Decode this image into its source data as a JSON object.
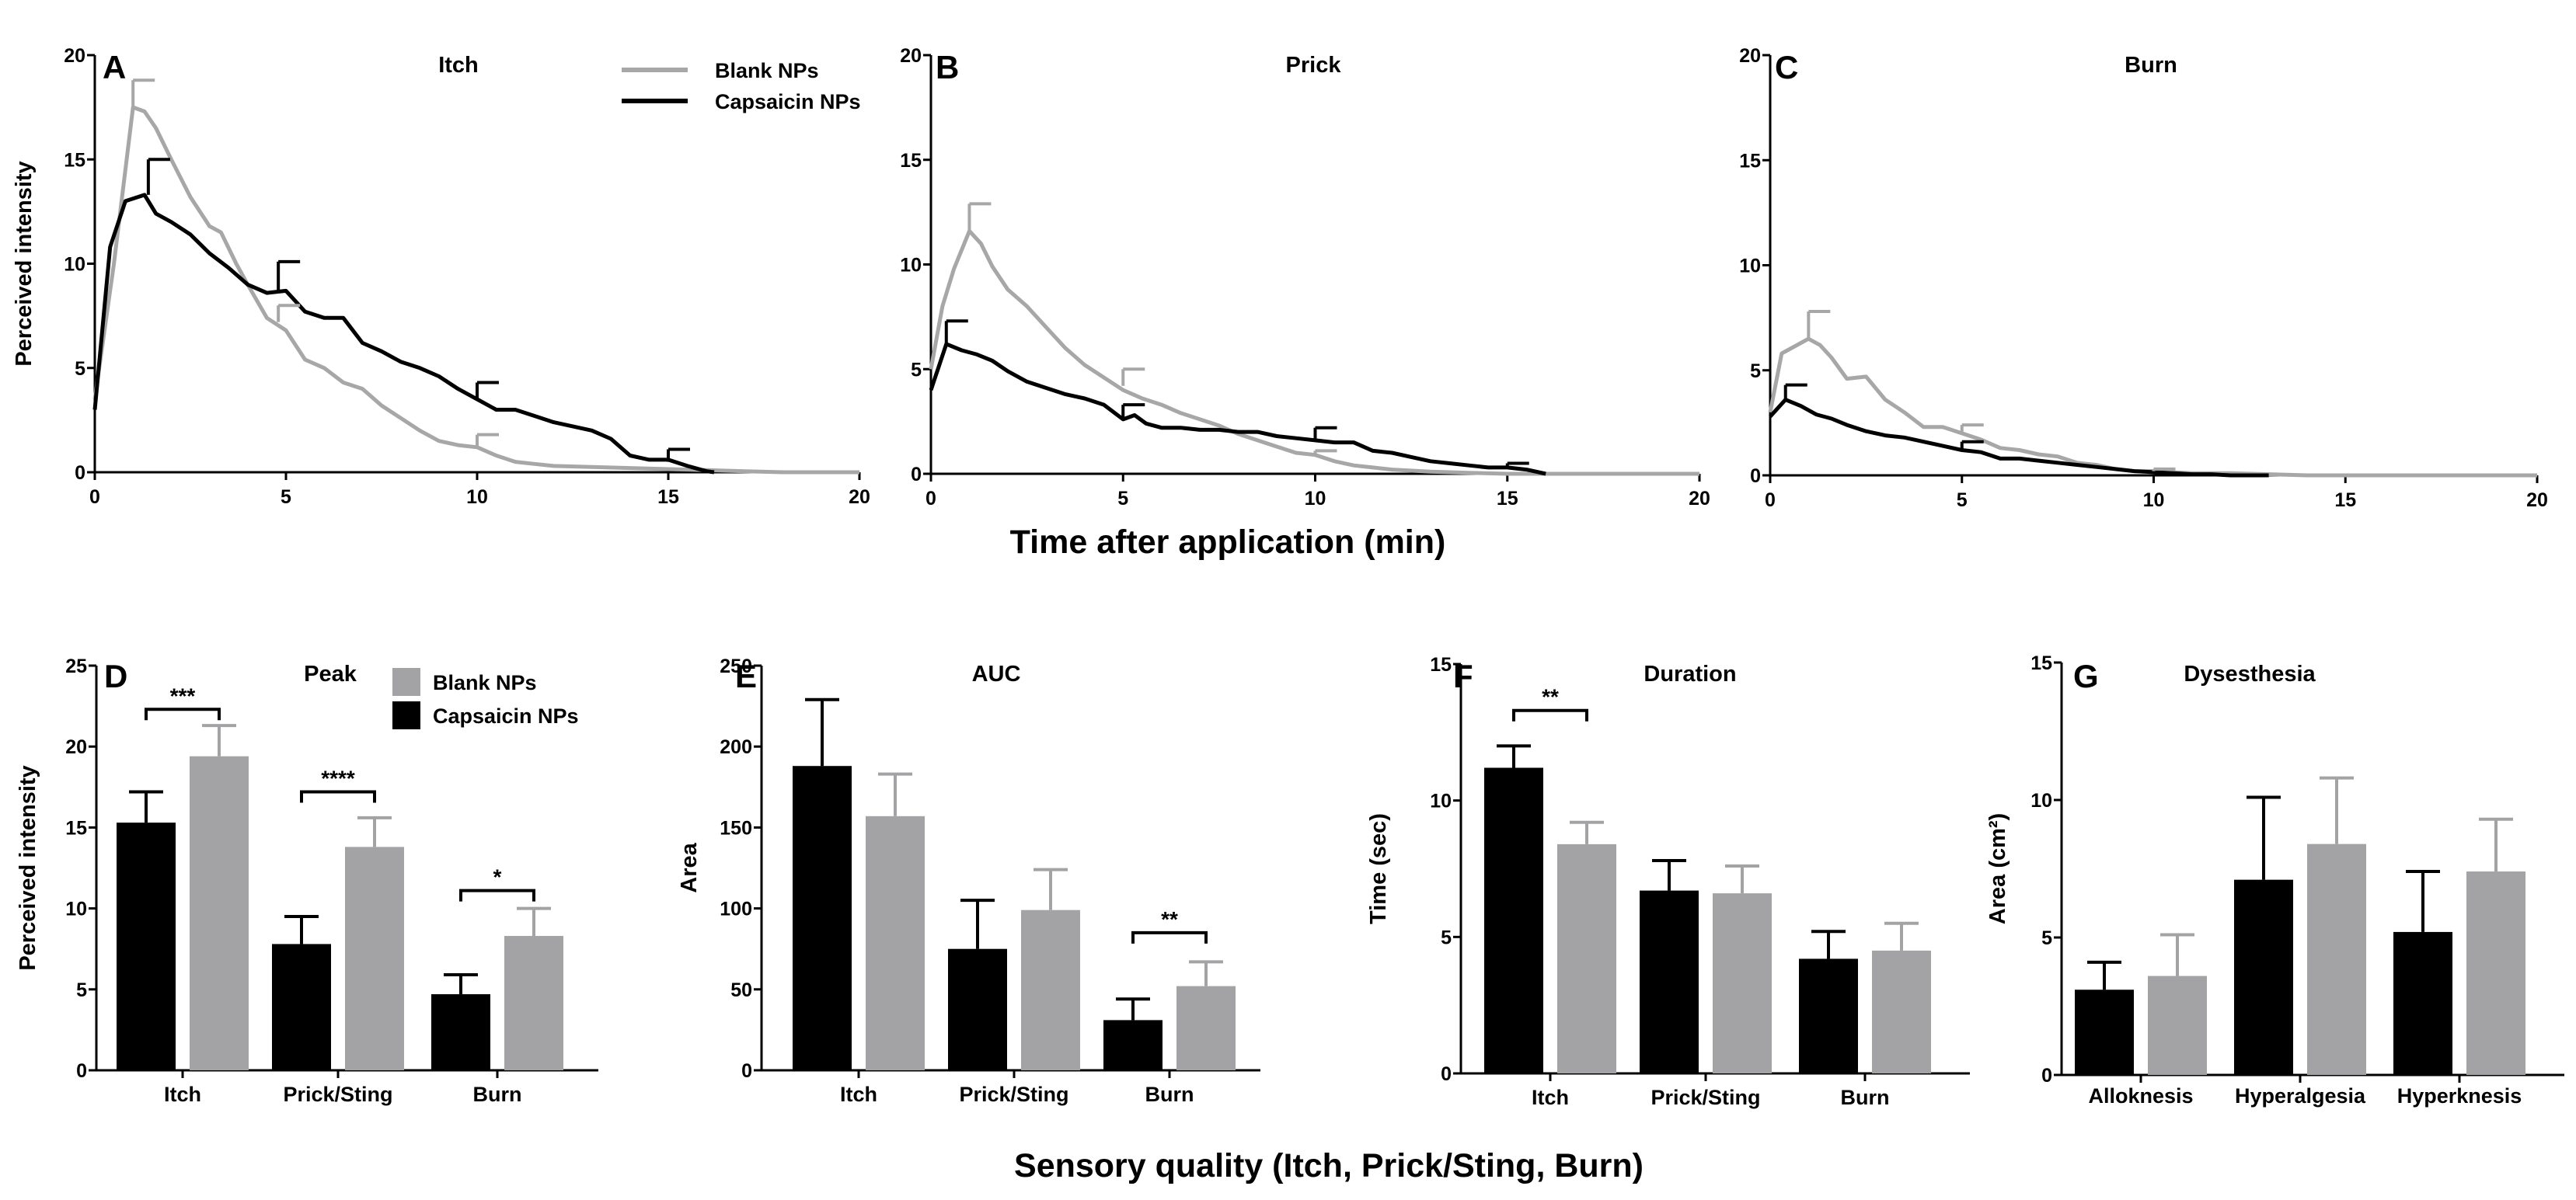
{
  "colors": {
    "capsaicin": "#000000",
    "blank": "#a3a3a6",
    "blank_line": "#a7a7a7"
  },
  "figure_labels": {
    "top_xlabel": "Time after application (min)",
    "bottom_xlabel": "Sensory quality (Itch, Prick/Sting, Burn)"
  },
  "chart_data": [
    {
      "id": "A",
      "letter": "A",
      "type": "line",
      "title": "Itch",
      "xlabel": "",
      "ylabel": "Perceived intensity",
      "xlim": [
        0,
        20
      ],
      "ylim": [
        0,
        20
      ],
      "xticks": [
        "0",
        "5",
        "10",
        "15",
        "20"
      ],
      "yticks": [
        "0",
        "5",
        "10",
        "15",
        "20"
      ],
      "legend": [
        "Blank NPs",
        "Capsaicin NPs"
      ],
      "series": [
        {
          "name": "Blank NPs",
          "color": "#a7a7a7",
          "x": [
            0,
            0.5,
            1,
            1.3,
            1.6,
            2,
            2.5,
            3,
            3.3,
            3.7,
            4,
            4.5,
            5,
            5.5,
            6,
            6.5,
            7,
            7.5,
            8,
            8.5,
            9,
            9.5,
            10,
            10.5,
            11,
            11.5,
            12,
            13,
            14,
            15,
            16,
            17,
            18,
            19,
            20
          ],
          "y": [
            3.5,
            10,
            17.5,
            17.3,
            16.5,
            15,
            13.2,
            11.8,
            11.5,
            10,
            9,
            7.4,
            6.8,
            5.4,
            5,
            4.3,
            4,
            3.2,
            2.6,
            2,
            1.5,
            1.3,
            1.2,
            0.8,
            0.5,
            0.4,
            0.3,
            0.25,
            0.2,
            0.15,
            0.1,
            0.05,
            0,
            0,
            0
          ]
        },
        {
          "name": "Capsaicin NPs",
          "color": "#000000",
          "x": [
            0,
            0.4,
            0.8,
            1.3,
            1.6,
            2,
            2.5,
            3,
            3.5,
            4,
            4.5,
            5,
            5.5,
            6,
            6.5,
            7,
            7.5,
            8,
            8.5,
            9,
            9.5,
            10,
            10.5,
            11,
            11.5,
            12,
            12.5,
            13,
            13.5,
            14,
            14.5,
            15,
            15.5,
            16,
            16.2
          ],
          "y": [
            3,
            10.8,
            13,
            13.3,
            12.4,
            12,
            11.4,
            10.5,
            9.8,
            9,
            8.6,
            8.7,
            7.7,
            7.4,
            7.4,
            6.2,
            5.8,
            5.3,
            5,
            4.6,
            4,
            3.5,
            3,
            3,
            2.7,
            2.4,
            2.2,
            2,
            1.6,
            0.8,
            0.6,
            0.6,
            0.3,
            0.05,
            0
          ]
        }
      ],
      "error_bars": [
        {
          "x": 1.0,
          "y": 17.5,
          "top": 18.8,
          "color": "#a7a7a7"
        },
        {
          "x": 4.8,
          "y": 7.2,
          "top": 8.0,
          "color": "#a7a7a7"
        },
        {
          "x": 10.0,
          "y": 1.2,
          "top": 1.8,
          "color": "#a7a7a7"
        },
        {
          "x": 1.4,
          "y": 13.3,
          "top": 15.0,
          "color": "#000000"
        },
        {
          "x": 4.8,
          "y": 8.6,
          "top": 10.1,
          "color": "#000000"
        },
        {
          "x": 10.0,
          "y": 3.5,
          "top": 4.3,
          "color": "#000000"
        },
        {
          "x": 15.0,
          "y": 0.5,
          "top": 1.1,
          "color": "#000000"
        }
      ]
    },
    {
      "id": "B",
      "letter": "B",
      "type": "line",
      "title": "Prick",
      "xlabel": "",
      "ylabel": "",
      "xlim": [
        0,
        20
      ],
      "ylim": [
        0,
        20
      ],
      "xticks": [
        "0",
        "5",
        "10",
        "15",
        "20"
      ],
      "yticks": [
        "0",
        "5",
        "10",
        "15",
        "20"
      ],
      "series": [
        {
          "name": "Blank NPs",
          "color": "#a7a7a7",
          "x": [
            0,
            0.3,
            0.6,
            1,
            1.3,
            1.6,
            2,
            2.5,
            3,
            3.5,
            4,
            4.5,
            5,
            5.5,
            6,
            6.5,
            7,
            7.5,
            8,
            8.5,
            9,
            9.5,
            10,
            10.5,
            11,
            11.5,
            12,
            13,
            14,
            15,
            16,
            17,
            18,
            19,
            20
          ],
          "y": [
            5,
            8,
            9.8,
            11.6,
            11,
            9.9,
            8.8,
            8,
            7,
            6,
            5.2,
            4.6,
            4,
            3.6,
            3.3,
            2.9,
            2.6,
            2.3,
            1.9,
            1.6,
            1.3,
            1,
            0.9,
            0.6,
            0.4,
            0.3,
            0.2,
            0.1,
            0.05,
            0,
            0,
            0,
            0,
            0,
            0
          ]
        },
        {
          "name": "Capsaicin NPs",
          "color": "#000000",
          "x": [
            0,
            0.4,
            0.8,
            1.2,
            1.6,
            2,
            2.5,
            3,
            3.5,
            4,
            4.5,
            5,
            5.3,
            5.6,
            6,
            6.5,
            7,
            7.5,
            8,
            8.5,
            9,
            9.5,
            10,
            10.5,
            11,
            11.5,
            12,
            12.5,
            13,
            13.5,
            14,
            14.5,
            15,
            15.5,
            16
          ],
          "y": [
            4,
            6.2,
            5.9,
            5.7,
            5.4,
            4.9,
            4.4,
            4.1,
            3.8,
            3.6,
            3.3,
            2.6,
            2.8,
            2.4,
            2.2,
            2.2,
            2.1,
            2.1,
            2,
            2,
            1.8,
            1.7,
            1.6,
            1.5,
            1.5,
            1.1,
            1,
            0.8,
            0.6,
            0.5,
            0.4,
            0.3,
            0.3,
            0.2,
            0
          ]
        }
      ],
      "error_bars": [
        {
          "x": 1.0,
          "y": 11.6,
          "top": 12.9,
          "color": "#a7a7a7"
        },
        {
          "x": 5.0,
          "y": 4.2,
          "top": 5.0,
          "color": "#a7a7a7"
        },
        {
          "x": 10.0,
          "y": 0.9,
          "top": 1.1,
          "color": "#a7a7a7"
        },
        {
          "x": 0.4,
          "y": 6.1,
          "top": 7.3,
          "color": "#000000"
        },
        {
          "x": 5.0,
          "y": 2.6,
          "top": 3.3,
          "color": "#000000"
        },
        {
          "x": 10.0,
          "y": 1.6,
          "top": 2.2,
          "color": "#000000"
        },
        {
          "x": 15.0,
          "y": 0.3,
          "top": 0.5,
          "color": "#000000"
        }
      ]
    },
    {
      "id": "C",
      "letter": "C",
      "type": "line",
      "title": "Burn",
      "xlabel": "",
      "ylabel": "",
      "xlim": [
        0,
        20
      ],
      "ylim": [
        0,
        20
      ],
      "xticks": [
        "0",
        "5",
        "10",
        "15",
        "20"
      ],
      "yticks": [
        "0",
        "5",
        "10",
        "15",
        "20"
      ],
      "series": [
        {
          "name": "Blank NPs",
          "color": "#a7a7a7",
          "x": [
            0,
            0.3,
            0.6,
            1,
            1.3,
            1.6,
            2,
            2.5,
            3,
            3.5,
            4,
            4.5,
            5,
            5.5,
            6,
            6.5,
            7,
            7.5,
            8,
            8.5,
            9,
            9.5,
            10,
            11,
            12,
            13,
            14,
            15,
            16,
            17,
            18,
            19,
            20
          ],
          "y": [
            3,
            5.8,
            6.1,
            6.5,
            6.2,
            5.6,
            4.6,
            4.7,
            3.6,
            3,
            2.3,
            2.3,
            2,
            1.7,
            1.3,
            1.2,
            1,
            0.9,
            0.6,
            0.5,
            0.3,
            0.2,
            0.2,
            0.1,
            0.1,
            0.05,
            0,
            0,
            0,
            0,
            0,
            0,
            0
          ]
        },
        {
          "name": "Capsaicin NPs",
          "color": "#000000",
          "x": [
            0,
            0.4,
            0.8,
            1.2,
            1.6,
            2,
            2.5,
            3,
            3.5,
            4,
            4.5,
            5,
            5.5,
            6,
            6.5,
            7,
            7.5,
            8,
            8.5,
            9,
            9.5,
            10,
            10.5,
            11,
            11.5,
            12,
            13
          ],
          "y": [
            2.8,
            3.6,
            3.3,
            2.9,
            2.7,
            2.4,
            2.1,
            1.9,
            1.8,
            1.6,
            1.4,
            1.2,
            1.1,
            0.8,
            0.8,
            0.7,
            0.6,
            0.5,
            0.4,
            0.3,
            0.2,
            0.15,
            0.1,
            0.05,
            0.05,
            0,
            0
          ]
        }
      ],
      "error_bars": [
        {
          "x": 1.0,
          "y": 6.5,
          "top": 7.8,
          "color": "#a7a7a7"
        },
        {
          "x": 5.0,
          "y": 2.0,
          "top": 2.4,
          "color": "#a7a7a7"
        },
        {
          "x": 10.0,
          "y": 0.2,
          "top": 0.3,
          "color": "#a7a7a7"
        },
        {
          "x": 0.4,
          "y": 3.6,
          "top": 4.3,
          "color": "#000000"
        },
        {
          "x": 5.0,
          "y": 1.2,
          "top": 1.6,
          "color": "#000000"
        }
      ]
    },
    {
      "id": "D",
      "letter": "D",
      "type": "bar",
      "title": "Peak",
      "ylabel": "Perceived intensity",
      "ylim": [
        0,
        25
      ],
      "yticks": [
        "0",
        "5",
        "10",
        "15",
        "20",
        "25"
      ],
      "categories": [
        "Itch",
        "Prick/Sting",
        "Burn"
      ],
      "legend": [
        "Blank  NPs",
        "Capsaicin NPs"
      ],
      "series": [
        {
          "name": "Capsaicin NPs",
          "color": "#000000",
          "values": [
            15.3,
            7.8,
            4.7
          ],
          "errors": [
            1.9,
            1.7,
            1.2
          ]
        },
        {
          "name": "Blank NPs",
          "color": "#a3a3a6",
          "values": [
            19.4,
            13.8,
            8.3
          ],
          "errors": [
            1.9,
            1.8,
            1.7
          ]
        }
      ],
      "significance": [
        {
          "category": 0,
          "label": "***",
          "y": 22.3
        },
        {
          "category": 1,
          "label": "****",
          "y": 17.2
        },
        {
          "category": 2,
          "label": "*",
          "y": 11.1
        }
      ]
    },
    {
      "id": "E",
      "letter": "E",
      "type": "bar",
      "title": "AUC",
      "ylabel": "Area",
      "ylim": [
        0,
        250
      ],
      "yticks": [
        "0",
        "50",
        "100",
        "150",
        "200",
        "250"
      ],
      "categories": [
        "Itch",
        "Prick/Sting",
        "Burn"
      ],
      "series": [
        {
          "name": "Capsaicin NPs",
          "color": "#000000",
          "values": [
            188,
            75,
            31
          ],
          "errors": [
            41,
            30,
            13
          ]
        },
        {
          "name": "Blank NPs",
          "color": "#a3a3a6",
          "values": [
            157,
            99,
            52
          ],
          "errors": [
            26,
            25,
            15
          ]
        }
      ],
      "significance": [
        {
          "category": 2,
          "label": "**",
          "y": 85
        }
      ]
    },
    {
      "id": "F",
      "letter": "F",
      "type": "bar",
      "title": "Duration",
      "ylabel": "Time (sec)",
      "ylim": [
        0,
        15
      ],
      "yticks": [
        "0",
        "5",
        "10",
        "15"
      ],
      "categories": [
        "Itch",
        "Prick/Sting",
        "Burn"
      ],
      "series": [
        {
          "name": "Capsaicin NPs",
          "color": "#000000",
          "values": [
            11.2,
            6.7,
            4.2
          ],
          "errors": [
            0.8,
            1.1,
            1.0
          ]
        },
        {
          "name": "Blank NPs",
          "color": "#a3a3a6",
          "values": [
            8.4,
            6.6,
            4.5
          ],
          "errors": [
            0.8,
            1.0,
            1.0
          ]
        }
      ],
      "significance": [
        {
          "category": 0,
          "label": "**",
          "y": 13.3
        }
      ]
    },
    {
      "id": "G",
      "letter": "G",
      "type": "bar",
      "title": "Dysesthesia",
      "ylabel": "Area (cm²)",
      "ylim": [
        0,
        15
      ],
      "yticks": [
        "0",
        "5",
        "10",
        "15"
      ],
      "categories": [
        "Alloknesis",
        "Hyperalgesia",
        "Hyperknesis"
      ],
      "series": [
        {
          "name": "Capsaicin NPs",
          "color": "#000000",
          "values": [
            3.1,
            7.1,
            5.2
          ],
          "errors": [
            1.0,
            3.0,
            2.2
          ]
        },
        {
          "name": "Blank NPs",
          "color": "#a3a3a6",
          "values": [
            3.6,
            8.4,
            7.4
          ],
          "errors": [
            1.5,
            2.4,
            1.9
          ]
        }
      ],
      "significance": []
    }
  ]
}
